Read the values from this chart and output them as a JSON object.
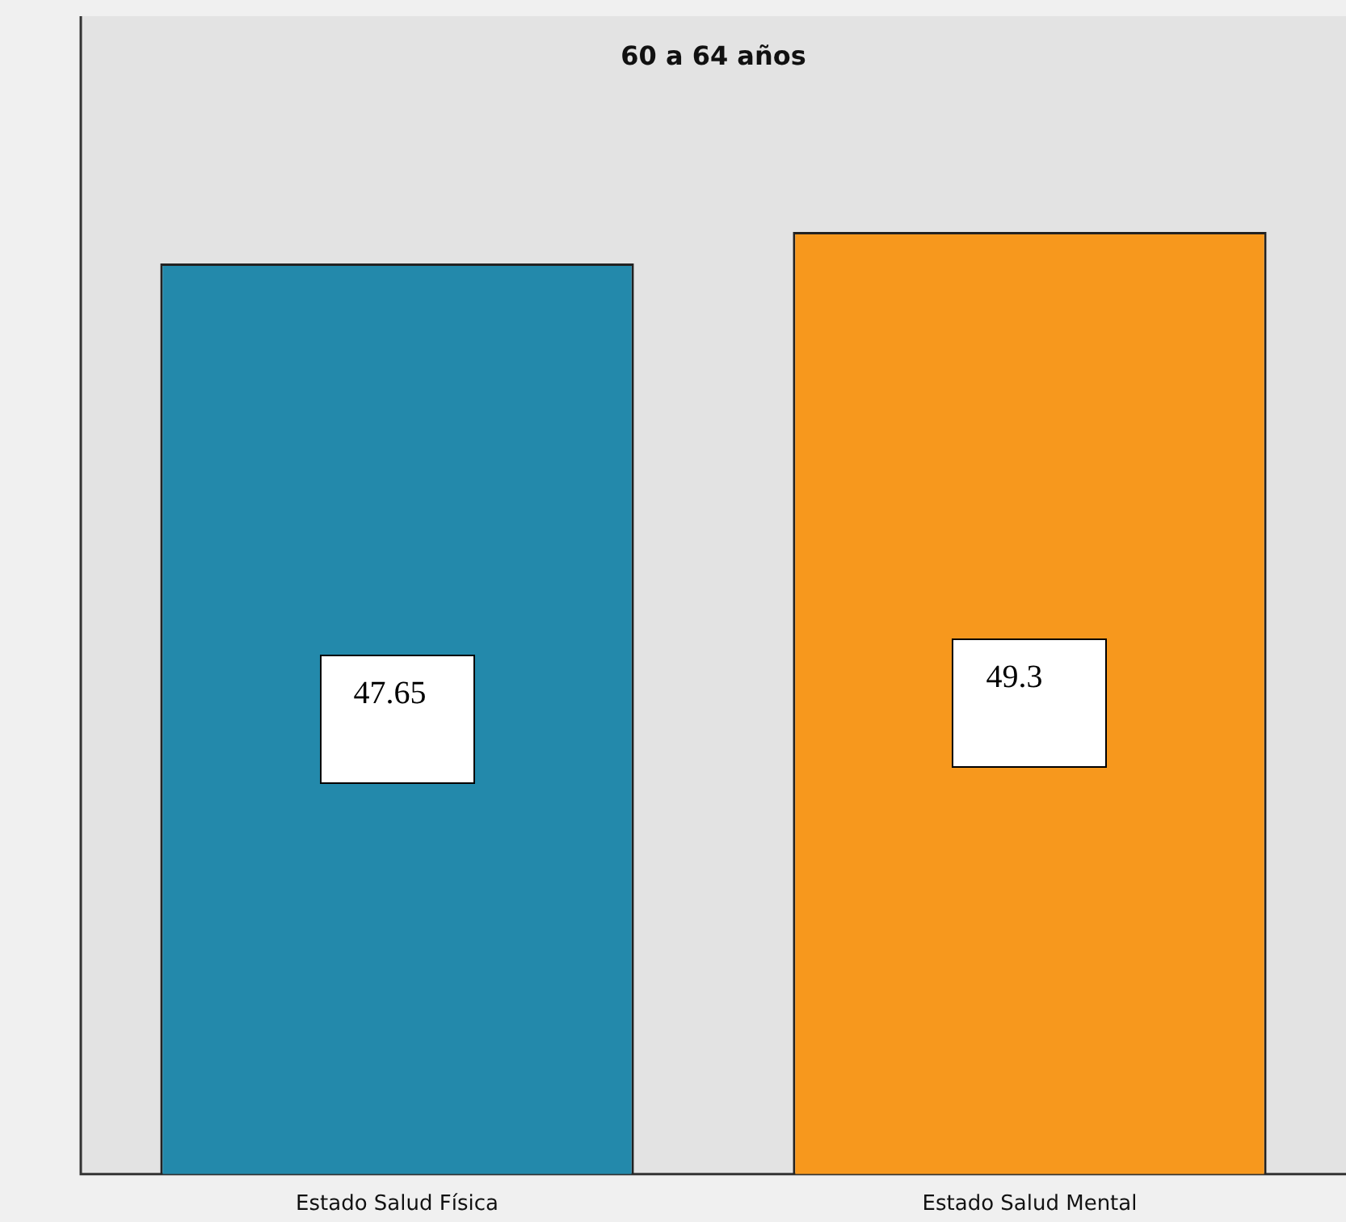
{
  "chart_data": {
    "type": "bar",
    "title": "60 a 64 años",
    "categories": [
      "Estado Salud Física",
      "Estado Salud Mental"
    ],
    "values": [
      47.65,
      49.3
    ],
    "colors": [
      "#2389ab",
      "#f7981d"
    ],
    "data_labels": true,
    "grid": false,
    "legend": false
  }
}
